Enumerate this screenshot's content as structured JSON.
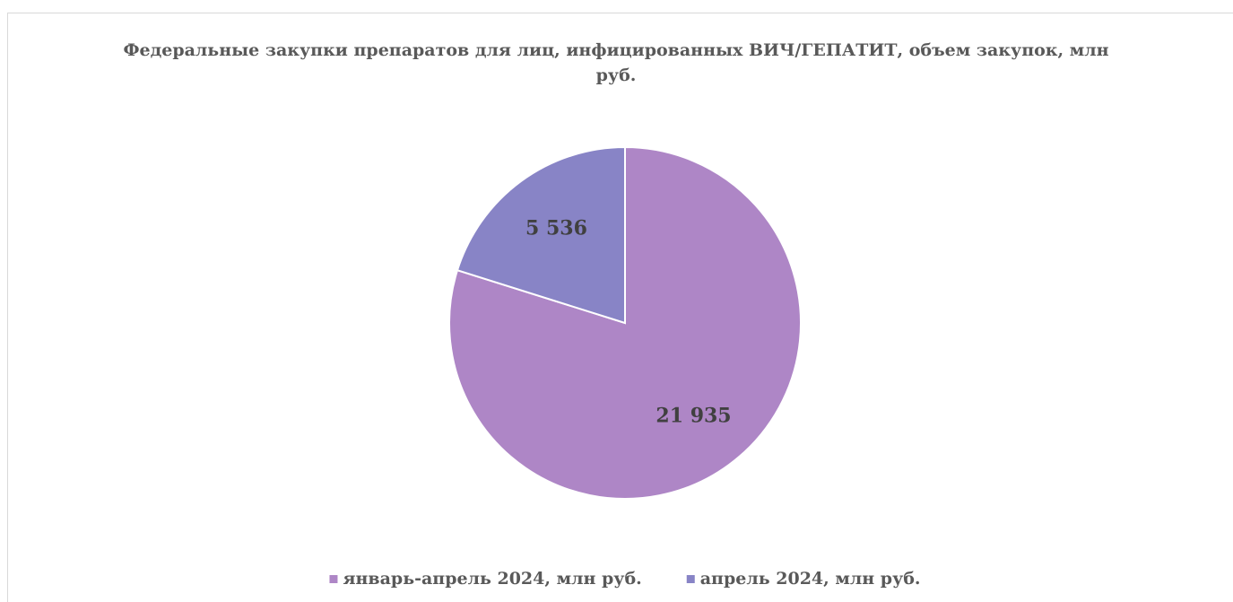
{
  "chart_data": {
    "type": "pie",
    "title": "Федеральные закупки препаратов для лиц, инфицированных ВИЧ/ГЕПАТИТ, объем закупок, млн руб.",
    "categories": [
      "январь-апрель 2024, млн руб.",
      "апрель 2024, млн руб."
    ],
    "values": [
      21935,
      5536
    ],
    "value_labels": [
      "21 935",
      "5 536"
    ],
    "colors": [
      "#ae86c6",
      "#8884c6"
    ],
    "legend": "bottom"
  }
}
